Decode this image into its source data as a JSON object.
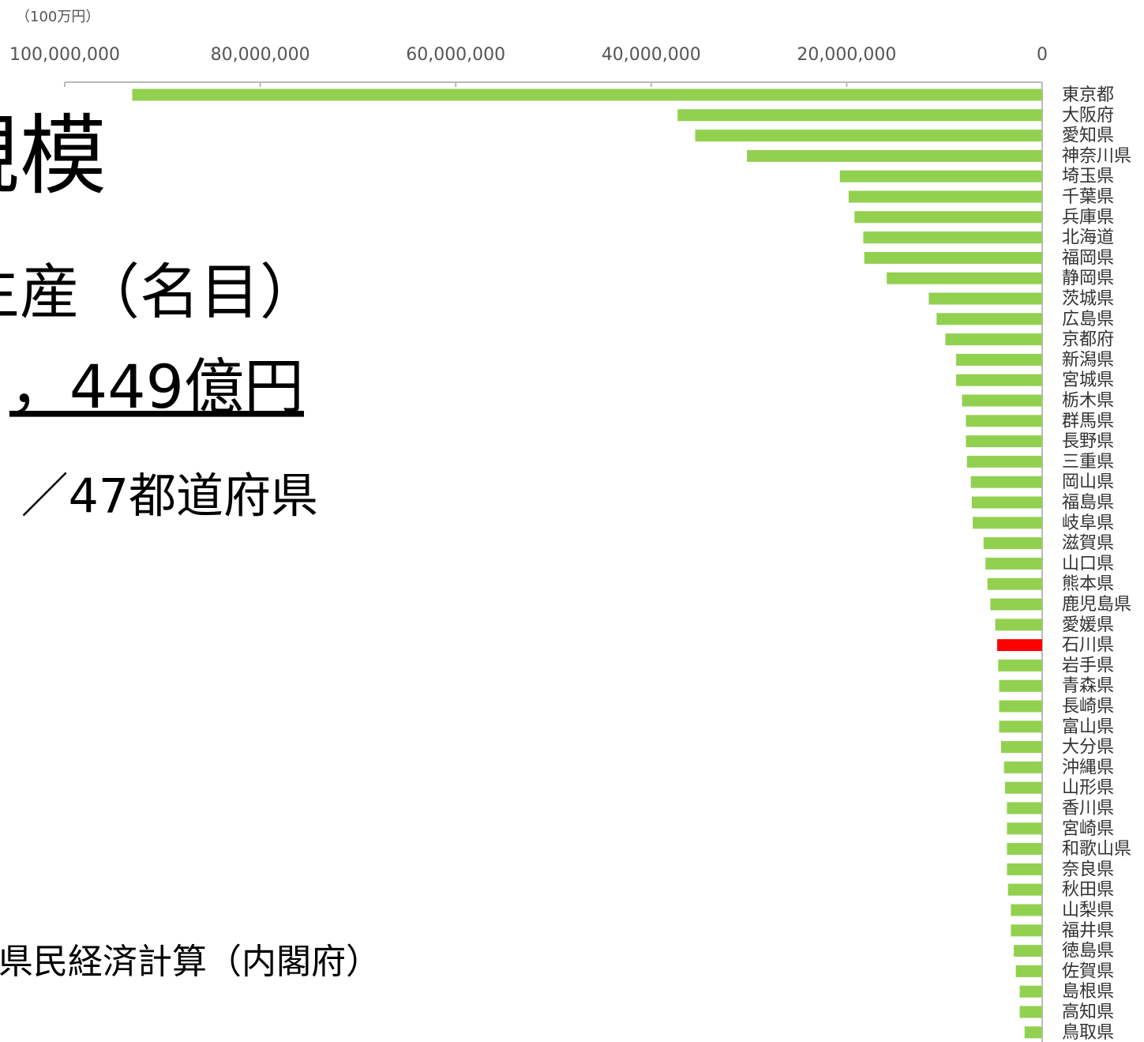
{
  "chart_data": {
    "type": "barh",
    "unit_label": "（100万円）",
    "annotations": [
      "規模",
      "生産（名目）",
      "，449億円",
      "／47都道府県",
      "県民経済計算（内閣府）"
    ],
    "categories": [
      "東京都",
      "大阪府",
      "愛知県",
      "神奈川県",
      "埼玉県",
      "千葉県",
      "兵庫県",
      "北海道",
      "福岡県",
      "静岡県",
      "茨城県",
      "広島県",
      "京都府",
      "新潟県",
      "宮城県",
      "栃木県",
      "群馬県",
      "長野県",
      "三重県",
      "岡山県",
      "福島県",
      "岐阜県",
      "滋賀県",
      "山口県",
      "熊本県",
      "鹿児島県",
      "愛媛県",
      "石川県",
      "岩手県",
      "青森県",
      "長崎県",
      "富山県",
      "大分県",
      "沖縄県",
      "山形県",
      "香川県",
      "宮崎県",
      "和歌山県",
      "奈良県",
      "秋田県",
      "山梨県",
      "福井県",
      "徳島県",
      "佐賀県",
      "島根県",
      "高知県",
      "鳥取県"
    ],
    "values": [
      93100000,
      37300000,
      35500000,
      30200000,
      20700000,
      19800000,
      19200000,
      18300000,
      18200000,
      15900000,
      11600000,
      10800000,
      9900000,
      8800000,
      8800000,
      8200000,
      7800000,
      7800000,
      7700000,
      7300000,
      7200000,
      7100000,
      6000000,
      5800000,
      5600000,
      5300000,
      4800000,
      4600000,
      4500000,
      4400000,
      4400000,
      4400000,
      4200000,
      3900000,
      3800000,
      3600000,
      3600000,
      3600000,
      3600000,
      3500000,
      3200000,
      3200000,
      2900000,
      2700000,
      2300000,
      2300000,
      1800000
    ],
    "color": "#92d050",
    "highlight": {
      "index": 27,
      "color": "#ff0000"
    },
    "xlim": [
      0,
      100000000
    ],
    "x_reversed": true,
    "xticks": [
      {
        "value": 100000000,
        "label": "100,000,000"
      },
      {
        "value": 80000000,
        "label": "80,000,000"
      },
      {
        "value": 60000000,
        "label": "60,000,000"
      },
      {
        "value": 40000000,
        "label": "40,000,000"
      },
      {
        "value": 20000000,
        "label": "20,000,000"
      },
      0
    ]
  }
}
